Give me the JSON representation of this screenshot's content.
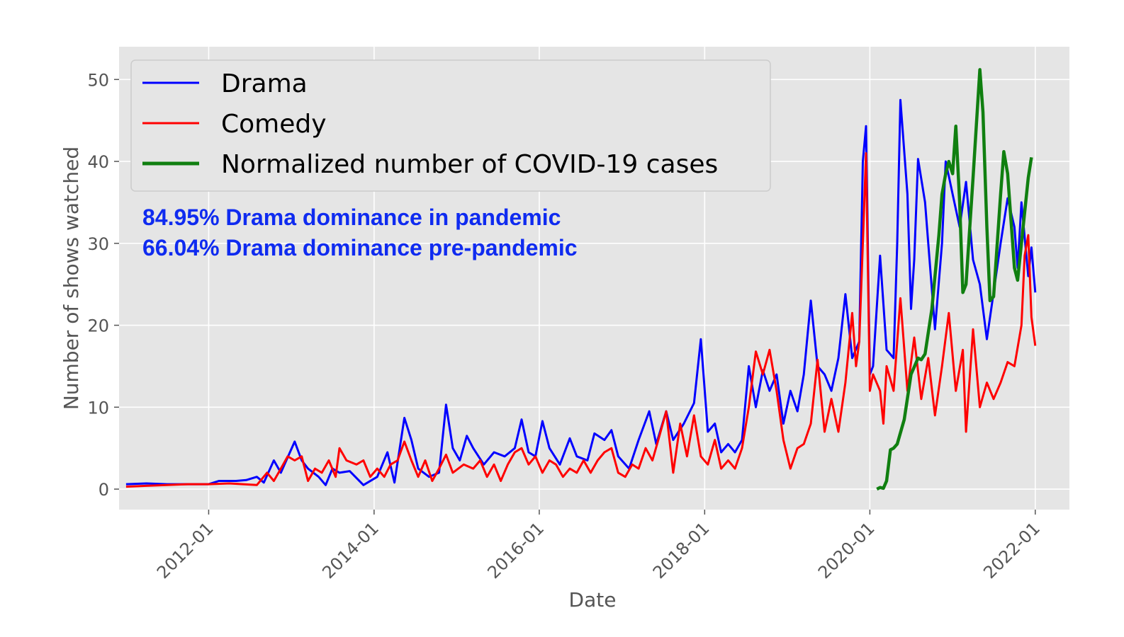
{
  "chart_data": {
    "type": "line",
    "title": "",
    "xlabel": "Date",
    "ylabel": "Number of shows watched",
    "x_tick_labels": [
      "2012-01",
      "2014-01",
      "2016-01",
      "2018-01",
      "2020-01",
      "2022-01"
    ],
    "y_tick_labels": [
      "0",
      "10",
      "20",
      "30",
      "40",
      "50"
    ],
    "xlim": [
      "2010-12-01",
      "2022-06-01"
    ],
    "ylim": [
      -2.5,
      54
    ],
    "grid": true,
    "legend_position": "top-left",
    "annotations": [
      {
        "text": "84.95% Drama dominance in pandemic",
        "color": "#0f2bf0"
      },
      {
        "text": "66.04% Drama dominance pre-pandemic",
        "color": "#0f2bf0"
      }
    ],
    "series": [
      {
        "name": "Drama",
        "color": "#0000ff",
        "points": [
          [
            "2011-01-01",
            0.6
          ],
          [
            "2011-04-01",
            0.7
          ],
          [
            "2011-07-01",
            0.6
          ],
          [
            "2011-10-01",
            0.6
          ],
          [
            "2012-01-01",
            0.6
          ],
          [
            "2012-02-15",
            1.0
          ],
          [
            "2012-05-01",
            1.0
          ],
          [
            "2012-06-15",
            1.1
          ],
          [
            "2012-08-01",
            1.5
          ],
          [
            "2012-09-01",
            0.8
          ],
          [
            "2012-10-15",
            3.5
          ],
          [
            "2012-11-15",
            2.0
          ],
          [
            "2013-01-15",
            5.8
          ],
          [
            "2013-02-15",
            3.5
          ],
          [
            "2013-03-15",
            2.5
          ],
          [
            "2013-05-01",
            1.5
          ],
          [
            "2013-06-01",
            0.5
          ],
          [
            "2013-07-01",
            2.5
          ],
          [
            "2013-08-01",
            2.0
          ],
          [
            "2013-09-15",
            2.2
          ],
          [
            "2013-11-15",
            0.5
          ],
          [
            "2014-01-15",
            1.5
          ],
          [
            "2014-03-01",
            4.5
          ],
          [
            "2014-04-01",
            0.8
          ],
          [
            "2014-05-15",
            8.7
          ],
          [
            "2014-06-15",
            6.0
          ],
          [
            "2014-07-15",
            2.5
          ],
          [
            "2014-09-01",
            1.5
          ],
          [
            "2014-10-15",
            2.0
          ],
          [
            "2014-11-15",
            10.3
          ],
          [
            "2014-12-15",
            5.0
          ],
          [
            "2015-01-15",
            3.5
          ],
          [
            "2015-02-15",
            6.5
          ],
          [
            "2015-03-15",
            5.0
          ],
          [
            "2015-05-01",
            3.0
          ],
          [
            "2015-06-15",
            4.5
          ],
          [
            "2015-08-01",
            4.0
          ],
          [
            "2015-09-15",
            5.0
          ],
          [
            "2015-10-15",
            8.5
          ],
          [
            "2015-11-15",
            4.5
          ],
          [
            "2015-12-15",
            4.0
          ],
          [
            "2016-01-15",
            8.3
          ],
          [
            "2016-02-15",
            5.0
          ],
          [
            "2016-04-01",
            3.0
          ],
          [
            "2016-05-15",
            6.2
          ],
          [
            "2016-06-15",
            4.0
          ],
          [
            "2016-08-01",
            3.5
          ],
          [
            "2016-09-01",
            6.8
          ],
          [
            "2016-10-15",
            6.0
          ],
          [
            "2016-11-15",
            7.2
          ],
          [
            "2016-12-15",
            4.0
          ],
          [
            "2017-02-01",
            2.5
          ],
          [
            "2017-03-15",
            6.0
          ],
          [
            "2017-05-01",
            9.5
          ],
          [
            "2017-06-01",
            5.5
          ],
          [
            "2017-07-15",
            9.5
          ],
          [
            "2017-08-15",
            6.0
          ],
          [
            "2017-10-01",
            8.0
          ],
          [
            "2017-11-15",
            10.5
          ],
          [
            "2017-12-15",
            18.3
          ],
          [
            "2018-01-15",
            7.0
          ],
          [
            "2018-02-15",
            8.0
          ],
          [
            "2018-03-15",
            4.5
          ],
          [
            "2018-04-15",
            5.5
          ],
          [
            "2018-05-15",
            4.5
          ],
          [
            "2018-06-15",
            6.0
          ],
          [
            "2018-07-15",
            15.0
          ],
          [
            "2018-08-15",
            10.0
          ],
          [
            "2018-09-15",
            14.5
          ],
          [
            "2018-10-15",
            12.0
          ],
          [
            "2018-11-15",
            14.0
          ],
          [
            "2018-12-15",
            8.0
          ],
          [
            "2019-01-15",
            12.0
          ],
          [
            "2019-02-15",
            9.5
          ],
          [
            "2019-03-15",
            14.0
          ],
          [
            "2019-04-15",
            23.0
          ],
          [
            "2019-05-15",
            15.0
          ],
          [
            "2019-06-15",
            14.0
          ],
          [
            "2019-07-15",
            12.0
          ],
          [
            "2019-08-15",
            16.0
          ],
          [
            "2019-09-15",
            23.8
          ],
          [
            "2019-10-15",
            16.0
          ],
          [
            "2019-11-15",
            18.0
          ],
          [
            "2019-12-01",
            40.0
          ],
          [
            "2019-12-15",
            44.3
          ],
          [
            "2020-01-01",
            14.0
          ],
          [
            "2020-01-15",
            15.0
          ],
          [
            "2020-02-15",
            28.5
          ],
          [
            "2020-03-15",
            17.0
          ],
          [
            "2020-04-15",
            16.0
          ],
          [
            "2020-05-01",
            30.0
          ],
          [
            "2020-05-15",
            47.5
          ],
          [
            "2020-06-15",
            36.0
          ],
          [
            "2020-07-01",
            22.0
          ],
          [
            "2020-07-15",
            28.0
          ],
          [
            "2020-08-01",
            40.3
          ],
          [
            "2020-09-01",
            35.0
          ],
          [
            "2020-09-15",
            30.0
          ],
          [
            "2020-10-15",
            19.5
          ],
          [
            "2020-11-15",
            30.0
          ],
          [
            "2020-12-01",
            40.0
          ],
          [
            "2021-01-01",
            36.0
          ],
          [
            "2021-02-01",
            32.0
          ],
          [
            "2021-03-01",
            37.5
          ],
          [
            "2021-04-01",
            28.0
          ],
          [
            "2021-05-01",
            25.0
          ],
          [
            "2021-06-01",
            18.3
          ],
          [
            "2021-07-01",
            24.0
          ],
          [
            "2021-08-01",
            30.0
          ],
          [
            "2021-09-01",
            35.5
          ],
          [
            "2021-10-01",
            32.0
          ],
          [
            "2021-10-15",
            27.0
          ],
          [
            "2021-11-01",
            35.0
          ],
          [
            "2021-12-01",
            26.0
          ],
          [
            "2021-12-15",
            29.5
          ],
          [
            "2022-01-01",
            24.0
          ]
        ]
      },
      {
        "name": "Comedy",
        "color": "#ff0000",
        "points": [
          [
            "2011-01-01",
            0.3
          ],
          [
            "2011-04-01",
            0.4
          ],
          [
            "2011-07-01",
            0.5
          ],
          [
            "2011-10-01",
            0.6
          ],
          [
            "2012-01-01",
            0.6
          ],
          [
            "2012-04-01",
            0.7
          ],
          [
            "2012-08-01",
            0.5
          ],
          [
            "2012-09-15",
            2.0
          ],
          [
            "2012-10-15",
            1.0
          ],
          [
            "2012-11-15",
            2.5
          ],
          [
            "2012-12-15",
            4.0
          ],
          [
            "2013-01-15",
            3.5
          ],
          [
            "2013-02-15",
            4.0
          ],
          [
            "2013-03-15",
            1.0
          ],
          [
            "2013-04-15",
            2.5
          ],
          [
            "2013-05-15",
            2.0
          ],
          [
            "2013-06-15",
            3.5
          ],
          [
            "2013-07-15",
            1.5
          ],
          [
            "2013-08-01",
            5.0
          ],
          [
            "2013-09-01",
            3.5
          ],
          [
            "2013-10-15",
            3.0
          ],
          [
            "2013-11-15",
            3.5
          ],
          [
            "2013-12-15",
            1.5
          ],
          [
            "2014-01-15",
            2.5
          ],
          [
            "2014-02-15",
            1.5
          ],
          [
            "2014-03-15",
            3.0
          ],
          [
            "2014-04-15",
            3.5
          ],
          [
            "2014-05-15",
            5.8
          ],
          [
            "2014-06-15",
            3.5
          ],
          [
            "2014-07-15",
            1.5
          ],
          [
            "2014-08-15",
            3.5
          ],
          [
            "2014-09-15",
            1.0
          ],
          [
            "2014-10-15",
            2.5
          ],
          [
            "2014-11-15",
            4.2
          ],
          [
            "2014-12-15",
            2.0
          ],
          [
            "2015-02-01",
            3.0
          ],
          [
            "2015-03-15",
            2.5
          ],
          [
            "2015-04-15",
            3.5
          ],
          [
            "2015-05-15",
            1.5
          ],
          [
            "2015-06-15",
            3.0
          ],
          [
            "2015-07-15",
            1.0
          ],
          [
            "2015-08-15",
            3.0
          ],
          [
            "2015-09-15",
            4.5
          ],
          [
            "2015-10-15",
            5.0
          ],
          [
            "2015-11-15",
            3.0
          ],
          [
            "2015-12-15",
            4.0
          ],
          [
            "2016-01-15",
            2.0
          ],
          [
            "2016-02-15",
            3.5
          ],
          [
            "2016-03-15",
            3.0
          ],
          [
            "2016-04-15",
            1.5
          ],
          [
            "2016-05-15",
            2.5
          ],
          [
            "2016-06-15",
            2.0
          ],
          [
            "2016-07-15",
            3.5
          ],
          [
            "2016-08-15",
            2.0
          ],
          [
            "2016-09-15",
            3.5
          ],
          [
            "2016-10-15",
            4.5
          ],
          [
            "2016-11-15",
            5.0
          ],
          [
            "2016-12-15",
            2.0
          ],
          [
            "2017-01-15",
            1.5
          ],
          [
            "2017-02-15",
            3.0
          ],
          [
            "2017-03-15",
            2.5
          ],
          [
            "2017-04-15",
            5.0
          ],
          [
            "2017-05-15",
            3.5
          ],
          [
            "2017-06-15",
            6.5
          ],
          [
            "2017-07-15",
            9.5
          ],
          [
            "2017-08-15",
            2.0
          ],
          [
            "2017-09-15",
            8.0
          ],
          [
            "2017-10-15",
            4.0
          ],
          [
            "2017-11-15",
            9.0
          ],
          [
            "2017-12-15",
            4.0
          ],
          [
            "2018-01-15",
            3.0
          ],
          [
            "2018-02-15",
            6.0
          ],
          [
            "2018-03-15",
            2.5
          ],
          [
            "2018-04-15",
            3.5
          ],
          [
            "2018-05-15",
            2.5
          ],
          [
            "2018-06-15",
            5.0
          ],
          [
            "2018-07-15",
            10.0
          ],
          [
            "2018-08-15",
            16.8
          ],
          [
            "2018-09-15",
            14.0
          ],
          [
            "2018-10-15",
            17.0
          ],
          [
            "2018-11-15",
            12.0
          ],
          [
            "2018-12-15",
            6.0
          ],
          [
            "2019-01-15",
            2.5
          ],
          [
            "2019-02-15",
            5.0
          ],
          [
            "2019-03-15",
            5.5
          ],
          [
            "2019-04-15",
            8.0
          ],
          [
            "2019-05-15",
            15.8
          ],
          [
            "2019-06-15",
            7.0
          ],
          [
            "2019-07-15",
            11.0
          ],
          [
            "2019-08-15",
            7.0
          ],
          [
            "2019-09-15",
            13.0
          ],
          [
            "2019-10-15",
            21.5
          ],
          [
            "2019-11-01",
            15.0
          ],
          [
            "2019-11-15",
            18.0
          ],
          [
            "2019-12-01",
            30.0
          ],
          [
            "2019-12-15",
            41.0
          ],
          [
            "2020-01-01",
            12.0
          ],
          [
            "2020-01-15",
            14.0
          ],
          [
            "2020-02-15",
            12.0
          ],
          [
            "2020-03-01",
            8.0
          ],
          [
            "2020-03-15",
            15.0
          ],
          [
            "2020-04-15",
            12.0
          ],
          [
            "2020-05-01",
            18.0
          ],
          [
            "2020-05-15",
            23.3
          ],
          [
            "2020-06-15",
            12.0
          ],
          [
            "2020-07-15",
            18.5
          ],
          [
            "2020-08-15",
            11.0
          ],
          [
            "2020-09-15",
            16.0
          ],
          [
            "2020-10-15",
            9.0
          ],
          [
            "2020-11-15",
            15.0
          ],
          [
            "2020-12-15",
            21.5
          ],
          [
            "2021-01-15",
            12.0
          ],
          [
            "2021-02-15",
            17.0
          ],
          [
            "2021-03-01",
            7.0
          ],
          [
            "2021-04-01",
            19.5
          ],
          [
            "2021-05-01",
            10.0
          ],
          [
            "2021-06-01",
            13.0
          ],
          [
            "2021-07-01",
            11.0
          ],
          [
            "2021-08-01",
            13.0
          ],
          [
            "2021-09-01",
            15.5
          ],
          [
            "2021-10-01",
            15.0
          ],
          [
            "2021-11-01",
            20.0
          ],
          [
            "2021-11-15",
            28.5
          ],
          [
            "2021-12-01",
            31.0
          ],
          [
            "2021-12-15",
            21.0
          ],
          [
            "2022-01-01",
            17.5
          ]
        ]
      },
      {
        "name": "Normalized number of COVID-19 cases",
        "color": "#107f10",
        "points": [
          [
            "2020-02-01",
            0.0
          ],
          [
            "2020-02-15",
            0.2
          ],
          [
            "2020-03-01",
            0.1
          ],
          [
            "2020-03-15",
            1.0
          ],
          [
            "2020-04-01",
            4.8
          ],
          [
            "2020-04-15",
            5.0
          ],
          [
            "2020-05-01",
            5.5
          ],
          [
            "2020-06-01",
            8.5
          ],
          [
            "2020-07-01",
            14.0
          ],
          [
            "2020-08-01",
            16.0
          ],
          [
            "2020-08-15",
            15.8
          ],
          [
            "2020-09-01",
            16.5
          ],
          [
            "2020-10-01",
            22.0
          ],
          [
            "2020-11-01",
            31.0
          ],
          [
            "2020-11-15",
            36.0
          ],
          [
            "2020-12-01",
            38.5
          ],
          [
            "2020-12-15",
            40.0
          ],
          [
            "2021-01-01",
            38.5
          ],
          [
            "2021-01-15",
            44.3
          ],
          [
            "2021-02-01",
            35.0
          ],
          [
            "2021-02-15",
            24.0
          ],
          [
            "2021-03-01",
            25.0
          ],
          [
            "2021-04-01",
            38.0
          ],
          [
            "2021-05-01",
            51.2
          ],
          [
            "2021-05-15",
            46.0
          ],
          [
            "2021-06-01",
            32.0
          ],
          [
            "2021-06-15",
            23.0
          ],
          [
            "2021-07-01",
            23.5
          ],
          [
            "2021-08-01",
            36.0
          ],
          [
            "2021-08-15",
            41.2
          ],
          [
            "2021-09-01",
            38.5
          ],
          [
            "2021-10-01",
            27.0
          ],
          [
            "2021-10-15",
            25.5
          ],
          [
            "2021-11-01",
            30.0
          ],
          [
            "2021-12-01",
            38.0
          ],
          [
            "2021-12-15",
            40.5
          ]
        ]
      }
    ]
  }
}
